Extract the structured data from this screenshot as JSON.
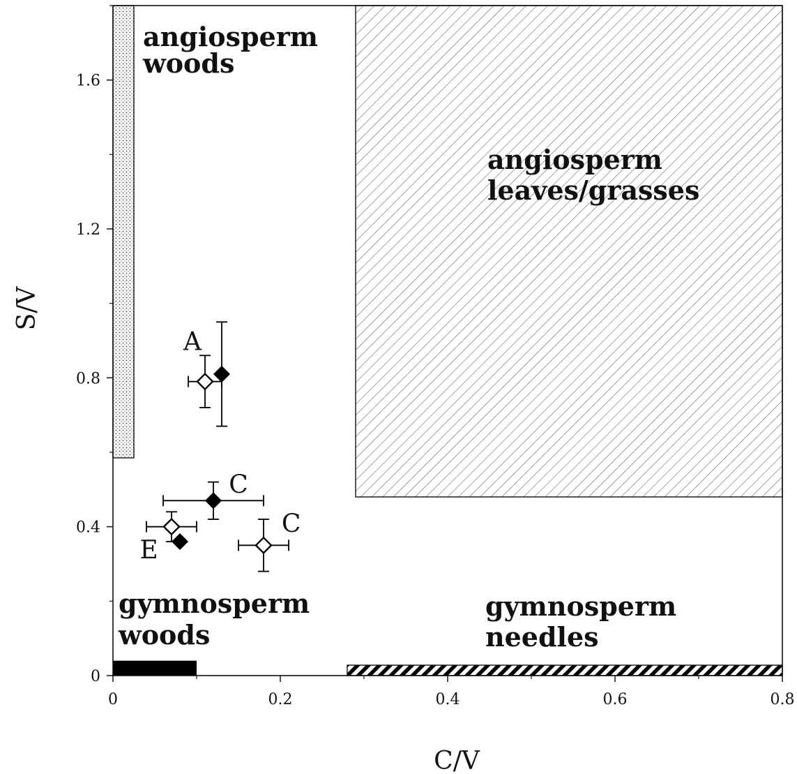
{
  "chart_data": {
    "type": "scatter",
    "xlabel": "C/V",
    "ylabel": "S/V",
    "xlim": [
      0,
      0.8
    ],
    "ylim": [
      0,
      1.8
    ],
    "x_ticks": [
      {
        "value": 0,
        "label": "0"
      },
      {
        "value": 0.2,
        "label": "0.2"
      },
      {
        "value": 0.4,
        "label": "0.4"
      },
      {
        "value": 0.6,
        "label": "0.6"
      },
      {
        "value": 0.8,
        "label": "0.8"
      }
    ],
    "y_ticks": [
      {
        "value": 0,
        "label": "0"
      },
      {
        "value": 0.4,
        "label": "0.4"
      },
      {
        "value": 0.8,
        "label": "0.8"
      },
      {
        "value": 1.2,
        "label": "1.2"
      },
      {
        "value": 1.6,
        "label": "1.6"
      }
    ],
    "regions": [
      {
        "id": "angio-woods",
        "label": [
          "angiosperm",
          "woods"
        ],
        "x": [
          0,
          0.025
        ],
        "y": [
          0.585,
          1.8
        ],
        "fill": "dots"
      },
      {
        "id": "angio-leaves",
        "label": [
          "angiosperm",
          "leaves/grasses"
        ],
        "x": [
          0.29,
          0.8
        ],
        "y": [
          0.48,
          1.8
        ],
        "fill": "hatch"
      },
      {
        "id": "gymno-woods",
        "label": [
          "gymnosperm",
          "woods"
        ],
        "x": [
          0,
          0.1
        ],
        "y": [
          0,
          0.04
        ],
        "fill": "solid"
      },
      {
        "id": "gymno-needles",
        "label": [
          "gymnosperm",
          "needles"
        ],
        "x": [
          0.28,
          0.8
        ],
        "y": [
          0,
          0.028
        ],
        "fill": "dense-hatch"
      }
    ],
    "series": [
      {
        "marker": "open-diamond",
        "points": [
          {
            "x": 0.11,
            "y": 0.79,
            "xerr": 0.02,
            "yerr": 0.07
          },
          {
            "x": 0.07,
            "y": 0.4,
            "xerr": 0.03,
            "yerr": 0.04
          },
          {
            "x": 0.18,
            "y": 0.35,
            "xerr": 0.03,
            "yerr": 0.07
          }
        ]
      },
      {
        "marker": "filled-diamond",
        "points": [
          {
            "x": 0.13,
            "y": 0.81,
            "yerr": 0.14
          },
          {
            "x": 0.12,
            "y": 0.47,
            "xerr": 0.06,
            "yerr": 0.05
          },
          {
            "x": 0.08,
            "y": 0.36
          }
        ]
      }
    ],
    "point_labels": [
      {
        "text": "A",
        "x": 0.095,
        "y": 0.875
      },
      {
        "text": "C",
        "x": 0.15,
        "y": 0.49
      },
      {
        "text": "C",
        "x": 0.213,
        "y": 0.385
      },
      {
        "text": "E",
        "x": 0.043,
        "y": 0.315
      }
    ]
  },
  "colors": {
    "axis": "#111111",
    "fill_dark": "#000000",
    "hatch": "#666666",
    "background": "#ffffff"
  }
}
